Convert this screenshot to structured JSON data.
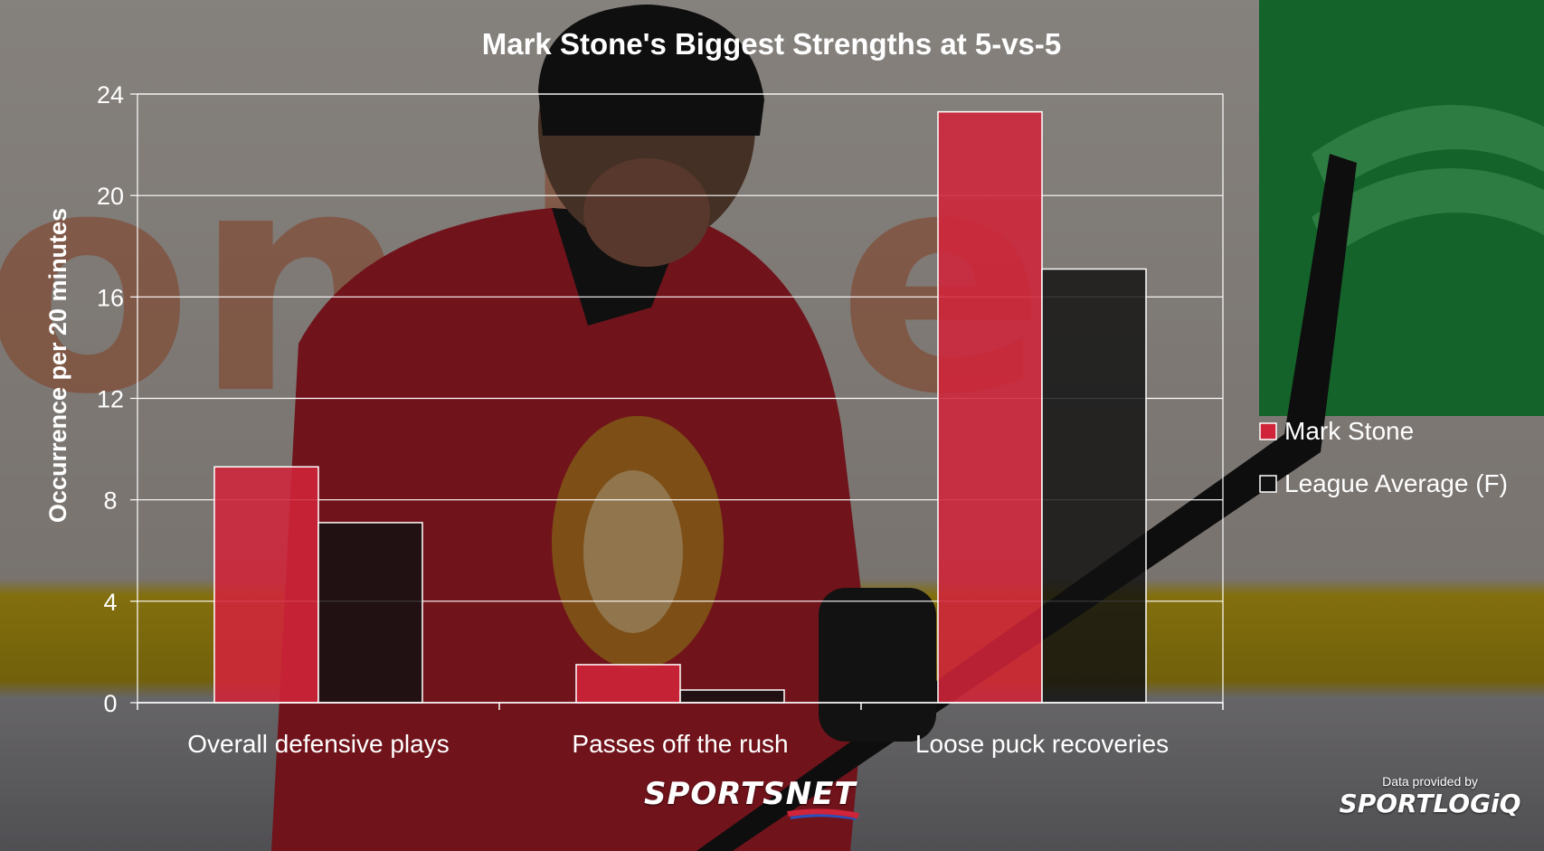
{
  "colors": {
    "mark_stone": "#d0243a",
    "league_average": "#111111",
    "text": "#ffffff",
    "grid": "#ffffff"
  },
  "chart_data": {
    "type": "bar",
    "title": "Mark Stone's Biggest Strengths at 5-vs-5",
    "ylabel": "Occurrence per 20 minutes",
    "xlabel": "",
    "ylim": [
      0,
      24
    ],
    "yticks": [
      0,
      4,
      8,
      12,
      16,
      20,
      24
    ],
    "grid": true,
    "legend_position": "right",
    "categories": [
      "Overall defensive plays",
      "Passes off the rush",
      "Loose puck recoveries"
    ],
    "series": [
      {
        "name": "Mark Stone",
        "values": [
          9.3,
          1.5,
          23.3
        ]
      },
      {
        "name": "League Average (F)",
        "values": [
          7.1,
          0.5,
          17.1
        ]
      }
    ]
  },
  "branding": {
    "sportsnet_logo": "SPORTSNET",
    "data_credit": "Data provided by",
    "sportlogiq_logo": "SPORTLOGiQ"
  }
}
